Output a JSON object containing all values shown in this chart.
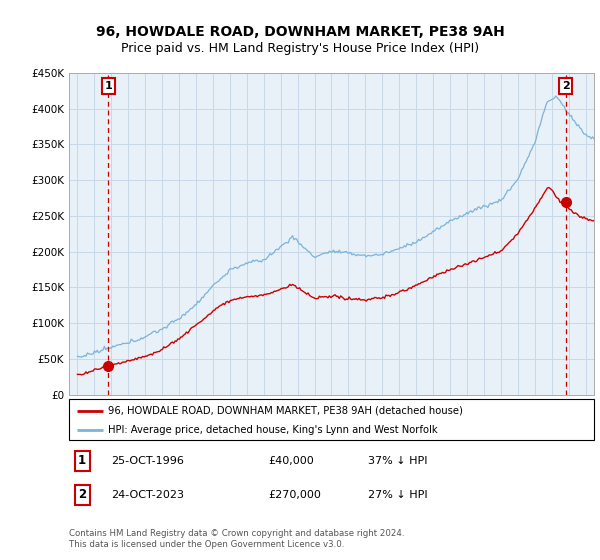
{
  "title": "96, HOWDALE ROAD, DOWNHAM MARKET, PE38 9AH",
  "subtitle": "Price paid vs. HM Land Registry's House Price Index (HPI)",
  "ylim": [
    0,
    450000
  ],
  "yticks": [
    0,
    50000,
    100000,
    150000,
    200000,
    250000,
    300000,
    350000,
    400000,
    450000
  ],
  "ytick_labels": [
    "£0",
    "£50K",
    "£100K",
    "£150K",
    "£200K",
    "£250K",
    "£300K",
    "£350K",
    "£400K",
    "£450K"
  ],
  "xlim": [
    1994.5,
    2025.5
  ],
  "xticks": [
    1995,
    1996,
    1997,
    1998,
    1999,
    2000,
    2001,
    2002,
    2003,
    2004,
    2005,
    2006,
    2007,
    2008,
    2009,
    2010,
    2011,
    2012,
    2013,
    2014,
    2015,
    2016,
    2017,
    2018,
    2019,
    2020,
    2021,
    2022,
    2023,
    2024,
    2025
  ],
  "hpi_color": "#7ab4d8",
  "price_color": "#cc0000",
  "vline_color": "#cc0000",
  "grid_color": "#c8d8e8",
  "plot_bg": "#e8f0f8",
  "point1_year": 1996.82,
  "point1_price": 40000,
  "point1_label": "1",
  "point2_year": 2023.82,
  "point2_price": 270000,
  "point2_label": "2",
  "legend_line1": "96, HOWDALE ROAD, DOWNHAM MARKET, PE38 9AH (detached house)",
  "legend_line2": "HPI: Average price, detached house, King's Lynn and West Norfolk",
  "annotation1_date": "25-OCT-1996",
  "annotation1_price": "£40,000",
  "annotation1_pct": "37% ↓ HPI",
  "annotation2_date": "24-OCT-2023",
  "annotation2_price": "£270,000",
  "annotation2_pct": "27% ↓ HPI",
  "footer": "Contains HM Land Registry data © Crown copyright and database right 2024.\nThis data is licensed under the Open Government Licence v3.0.",
  "title_fontsize": 10,
  "subtitle_fontsize": 9
}
